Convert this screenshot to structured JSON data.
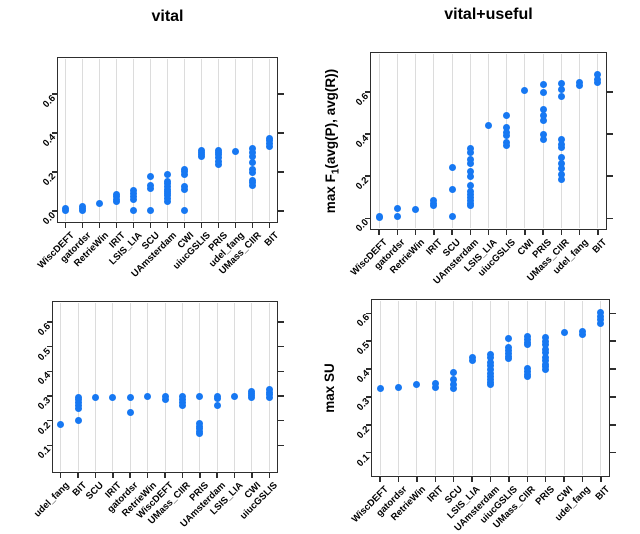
{
  "figure": {
    "background": "#ffffff",
    "dot_color": "#1778F2",
    "grid_color": "#dcdcdc",
    "border_color": "#2e2e2e",
    "text_color": "#000000"
  },
  "chart_data": [
    {
      "type": "scatter",
      "id": "f1-vital",
      "title": "vital",
      "ylabel": null,
      "xlabel": "",
      "grid": "vertical",
      "legend": "none",
      "ylim": [
        -0.06,
        0.79
      ],
      "ytick_values": [
        0.0,
        0.2,
        0.4,
        0.6
      ],
      "yticks": [
        "0.0",
        "0.2",
        "0.4",
        "0.6"
      ],
      "points": [
        {
          "category": "WiscDEFT",
          "values": [
            0.005,
            0.012
          ]
        },
        {
          "category": "gatordsr",
          "values": [
            0.003,
            0.012,
            0.025
          ]
        },
        {
          "category": "RetrieWin",
          "values": [
            0.04
          ]
        },
        {
          "category": "IRIT",
          "values": [
            0.05,
            0.062,
            0.075,
            0.088
          ]
        },
        {
          "category": "LSIS_LIA",
          "values": [
            0.003,
            0.062,
            0.075,
            0.09,
            0.105
          ]
        },
        {
          "category": "SCU",
          "values": [
            0.005,
            0.115,
            0.13,
            0.18
          ]
        },
        {
          "category": "UAmsterdam",
          "values": [
            0.05,
            0.065,
            0.08,
            0.09,
            0.1,
            0.11,
            0.125,
            0.14,
            0.155,
            0.19
          ]
        },
        {
          "category": "CWI",
          "values": [
            0.005,
            0.11,
            0.125,
            0.19,
            0.205,
            0.215
          ]
        },
        {
          "category": "uiucGSLIS",
          "values": [
            0.28,
            0.29,
            0.3,
            0.31
          ]
        },
        {
          "category": "PRIS",
          "values": [
            0.24,
            0.255,
            0.275,
            0.29,
            0.3,
            0.31
          ]
        },
        {
          "category": "udel_fang",
          "values": [
            0.305
          ]
        },
        {
          "category": "UMass_CIIR",
          "values": [
            0.13,
            0.145,
            0.16,
            0.2,
            0.215,
            0.25,
            0.28,
            0.3,
            0.32
          ]
        },
        {
          "category": "BIT",
          "values": [
            0.33,
            0.345,
            0.36,
            0.375
          ]
        }
      ]
    },
    {
      "type": "scatter",
      "id": "f1-vital-useful",
      "title": "vital+useful",
      "ylabel": {
        "prefix": "max F",
        "sub": "1",
        "suffix": "(avg(P), avg(R))"
      },
      "xlabel": "",
      "grid": "vertical",
      "legend": "none",
      "ylim": [
        -0.055,
        0.79
      ],
      "ytick_values": [
        0.0,
        0.2,
        0.4,
        0.6
      ],
      "yticks": [
        "0.0",
        "0.2",
        "0.4",
        "0.6"
      ],
      "points": [
        {
          "category": "WiscDEFT",
          "values": [
            0.004,
            0.01
          ]
        },
        {
          "category": "gatordsr",
          "values": [
            0.008,
            0.045
          ]
        },
        {
          "category": "RetrieWin",
          "values": [
            0.042
          ]
        },
        {
          "category": "IRIT",
          "values": [
            0.06,
            0.072,
            0.085
          ]
        },
        {
          "category": "SCU",
          "values": [
            0.01,
            0.135,
            0.24
          ]
        },
        {
          "category": "UAmsterdam",
          "values": [
            0.06,
            0.072,
            0.085,
            0.1,
            0.115,
            0.13,
            0.155,
            0.2,
            0.225,
            0.26,
            0.28,
            0.315,
            0.33
          ]
        },
        {
          "category": "LSIS_LIA",
          "values": [
            0.44
          ]
        },
        {
          "category": "uiucGSLIS",
          "values": [
            0.345,
            0.36,
            0.395,
            0.41,
            0.43,
            0.49
          ]
        },
        {
          "category": "CWI",
          "values": [
            0.605
          ]
        },
        {
          "category": "PRIS",
          "values": [
            0.375,
            0.4,
            0.465,
            0.49,
            0.515,
            0.6,
            0.635
          ]
        },
        {
          "category": "UMass_CIIR",
          "values": [
            0.185,
            0.21,
            0.235,
            0.26,
            0.29,
            0.335,
            0.35,
            0.375,
            0.58,
            0.61,
            0.64
          ]
        },
        {
          "category": "udel_fang",
          "values": [
            0.63,
            0.645
          ]
        },
        {
          "category": "BIT",
          "values": [
            0.645,
            0.66,
            0.685
          ]
        }
      ]
    },
    {
      "type": "scatter",
      "id": "su-vital",
      "title": null,
      "ylabel": null,
      "xlabel": "",
      "grid": "vertical",
      "legend": "none",
      "ylim": [
        -0.012,
        0.685
      ],
      "ytick_values": [
        0.1,
        0.2,
        0.3,
        0.4,
        0.5,
        0.6
      ],
      "yticks": [
        "0.1",
        "0.2",
        "0.3",
        "0.4",
        "0.5",
        "0.6"
      ],
      "points": [
        {
          "category": "udel_fang",
          "values": [
            0.185
          ]
        },
        {
          "category": "BIT",
          "values": [
            0.2,
            0.25,
            0.262,
            0.275,
            0.285,
            0.295
          ]
        },
        {
          "category": "SCU",
          "values": [
            0.295
          ]
        },
        {
          "category": "IRIT",
          "values": [
            0.295
          ]
        },
        {
          "category": "gatordsr",
          "values": [
            0.232,
            0.295
          ]
        },
        {
          "category": "RetrieWin",
          "values": [
            0.296
          ]
        },
        {
          "category": "WiscDEFT",
          "values": [
            0.285,
            0.296
          ]
        },
        {
          "category": "UMass_CIIR",
          "values": [
            0.262,
            0.272,
            0.285,
            0.296
          ]
        },
        {
          "category": "PRIS",
          "values": [
            0.148,
            0.158,
            0.168,
            0.178,
            0.188,
            0.296
          ]
        },
        {
          "category": "UAmsterdam",
          "values": [
            0.262,
            0.288,
            0.296
          ]
        },
        {
          "category": "LSIS_LIA",
          "values": [
            0.3
          ]
        },
        {
          "category": "CWI",
          "values": [
            0.295,
            0.302,
            0.31,
            0.318
          ]
        },
        {
          "category": "uiucGSLIS",
          "values": [
            0.295,
            0.305,
            0.315,
            0.325
          ]
        }
      ]
    },
    {
      "type": "scatter",
      "id": "su-vital-useful",
      "title": null,
      "ylabel": {
        "prefix": "max SU",
        "sub": "",
        "suffix": ""
      },
      "xlabel": "",
      "grid": "vertical",
      "legend": "none",
      "ylim": [
        0.012,
        0.652
      ],
      "ytick_values": [
        0.1,
        0.2,
        0.3,
        0.4,
        0.5,
        0.6
      ],
      "yticks": [
        "0.1",
        "0.2",
        "0.3",
        "0.4",
        "0.5",
        "0.6"
      ],
      "points": [
        {
          "category": "WiscDEFT",
          "values": [
            0.332
          ]
        },
        {
          "category": "gatordsr",
          "values": [
            0.333
          ]
        },
        {
          "category": "RetrieWin",
          "values": [
            0.343
          ]
        },
        {
          "category": "IRIT",
          "values": [
            0.335,
            0.347
          ]
        },
        {
          "category": "SCU",
          "values": [
            0.332,
            0.345,
            0.363,
            0.387
          ]
        },
        {
          "category": "LSIS_LIA",
          "values": [
            0.432,
            0.44
          ]
        },
        {
          "category": "UAmsterdam",
          "values": [
            0.343,
            0.352,
            0.362,
            0.372,
            0.385,
            0.4,
            0.412,
            0.425,
            0.44,
            0.452
          ]
        },
        {
          "category": "uiucGSLIS",
          "values": [
            0.437,
            0.447,
            0.457,
            0.468,
            0.478,
            0.51
          ]
        },
        {
          "category": "UMass_CIIR",
          "values": [
            0.372,
            0.382,
            0.392,
            0.402,
            0.487,
            0.497,
            0.507,
            0.517
          ]
        },
        {
          "category": "PRIS",
          "values": [
            0.398,
            0.408,
            0.418,
            0.43,
            0.443,
            0.458,
            0.472,
            0.487,
            0.5,
            0.512
          ]
        },
        {
          "category": "CWI",
          "values": [
            0.53
          ]
        },
        {
          "category": "udel_fang",
          "values": [
            0.524,
            0.535
          ]
        },
        {
          "category": "BIT",
          "values": [
            0.565,
            0.578,
            0.59,
            0.602
          ]
        }
      ]
    }
  ]
}
